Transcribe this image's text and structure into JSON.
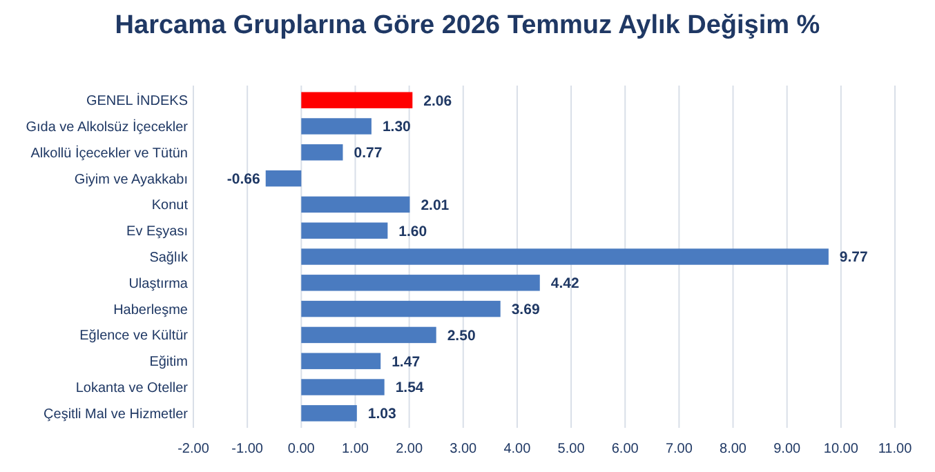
{
  "chart_data": {
    "type": "bar",
    "orientation": "horizontal",
    "title": "Harcama Gruplarına Göre 2026 Temmuz Aylık Değişim %",
    "categories": [
      "GENEL İNDEKS",
      "Gıda ve Alkolsüz İçecekler",
      "Alkollü İçecekler ve Tütün",
      "Giyim ve Ayakkabı",
      "Konut",
      "Ev Eşyası",
      "Sağlık",
      "Ulaştırma",
      "Haberleşme",
      "Eğlence ve Kültür",
      "Eğitim",
      "Lokanta ve Oteller",
      "Çeşitli Mal ve Hizmetler"
    ],
    "values": [
      2.06,
      1.3,
      0.77,
      -0.66,
      2.01,
      1.6,
      9.77,
      4.42,
      3.69,
      2.5,
      1.47,
      1.54,
      1.03
    ],
    "value_labels": [
      "2.06",
      "1.30",
      "0.77",
      "-0.66",
      "2.01",
      "1.60",
      "9.77",
      "4.42",
      "3.69",
      "2.50",
      "1.47",
      "1.54",
      "1.03"
    ],
    "colors": [
      "#ff0000",
      "#4a7bc0",
      "#4a7bc0",
      "#4a7bc0",
      "#4a7bc0",
      "#4a7bc0",
      "#4a7bc0",
      "#4a7bc0",
      "#4a7bc0",
      "#4a7bc0",
      "#4a7bc0",
      "#4a7bc0",
      "#4a7bc0"
    ],
    "xlim": [
      -2,
      11
    ],
    "xticks": [
      {
        "value": -2,
        "label": "-2.00"
      },
      {
        "value": -1,
        "label": "-1.00"
      },
      {
        "value": 0,
        "label": "0.00"
      },
      {
        "value": 1,
        "label": "1.00"
      },
      {
        "value": 2,
        "label": "2.00"
      },
      {
        "value": 3,
        "label": "3.00"
      },
      {
        "value": 4,
        "label": "4.00"
      },
      {
        "value": 5,
        "label": "5.00"
      },
      {
        "value": 6,
        "label": "6.00"
      },
      {
        "value": 7,
        "label": "7.00"
      },
      {
        "value": 8,
        "label": "8.00"
      },
      {
        "value": 9,
        "label": "9.00"
      },
      {
        "value": 10,
        "label": "10.00"
      },
      {
        "value": 11,
        "label": "11.00"
      }
    ],
    "grid": "x"
  }
}
